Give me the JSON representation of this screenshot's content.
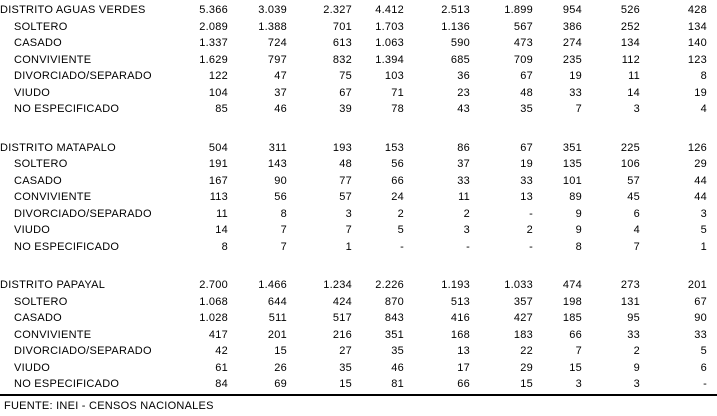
{
  "table": {
    "sections": [
      {
        "name": "DISTRITO AGUAS VERDES",
        "values": [
          "5.366",
          "3.039",
          "2.327",
          "4.412",
          "2.513",
          "1.899",
          "954",
          "526",
          "428"
        ],
        "rows": [
          {
            "label": "SOLTERO",
            "values": [
              "2.089",
              "1.388",
              "701",
              "1.703",
              "1.136",
              "567",
              "386",
              "252",
              "134"
            ]
          },
          {
            "label": "CASADO",
            "values": [
              "1.337",
              "724",
              "613",
              "1.063",
              "590",
              "473",
              "274",
              "134",
              "140"
            ]
          },
          {
            "label": "CONVIVIENTE",
            "values": [
              "1.629",
              "797",
              "832",
              "1.394",
              "685",
              "709",
              "235",
              "112",
              "123"
            ]
          },
          {
            "label": "DIVORCIADO/SEPARADO",
            "values": [
              "122",
              "47",
              "75",
              "103",
              "36",
              "67",
              "19",
              "11",
              "8"
            ]
          },
          {
            "label": "VIUDO",
            "values": [
              "104",
              "37",
              "67",
              "71",
              "23",
              "48",
              "33",
              "14",
              "19"
            ]
          },
          {
            "label": "NO ESPECIFICADO",
            "values": [
              "85",
              "46",
              "39",
              "78",
              "43",
              "35",
              "7",
              "3",
              "4"
            ]
          }
        ]
      },
      {
        "name": "DISTRITO MATAPALO",
        "values": [
          "504",
          "311",
          "193",
          "153",
          "86",
          "67",
          "351",
          "225",
          "126"
        ],
        "rows": [
          {
            "label": "SOLTERO",
            "values": [
              "191",
              "143",
              "48",
              "56",
              "37",
              "19",
              "135",
              "106",
              "29"
            ]
          },
          {
            "label": "CASADO",
            "values": [
              "167",
              "90",
              "77",
              "66",
              "33",
              "33",
              "101",
              "57",
              "44"
            ]
          },
          {
            "label": "CONVIVIENTE",
            "values": [
              "113",
              "56",
              "57",
              "24",
              "11",
              "13",
              "89",
              "45",
              "44"
            ]
          },
          {
            "label": "DIVORCIADO/SEPARADO",
            "values": [
              "11",
              "8",
              "3",
              "2",
              "2",
              "-",
              "9",
              "6",
              "3"
            ]
          },
          {
            "label": "VIUDO",
            "values": [
              "14",
              "7",
              "7",
              "5",
              "3",
              "2",
              "9",
              "4",
              "5"
            ]
          },
          {
            "label": "NO ESPECIFICADO",
            "values": [
              "8",
              "7",
              "1",
              "-",
              "-",
              "-",
              "8",
              "7",
              "1"
            ]
          }
        ]
      },
      {
        "name": "DISTRITO PAPAYAL",
        "values": [
          "2.700",
          "1.466",
          "1.234",
          "2.226",
          "1.193",
          "1.033",
          "474",
          "273",
          "201"
        ],
        "rows": [
          {
            "label": "SOLTERO",
            "values": [
              "1.068",
              "644",
              "424",
              "870",
              "513",
              "357",
              "198",
              "131",
              "67"
            ]
          },
          {
            "label": "CASADO",
            "values": [
              "1.028",
              "511",
              "517",
              "843",
              "416",
              "427",
              "185",
              "95",
              "90"
            ]
          },
          {
            "label": "CONVIVIENTE",
            "values": [
              "417",
              "201",
              "216",
              "351",
              "168",
              "183",
              "66",
              "33",
              "33"
            ]
          },
          {
            "label": "DIVORCIADO/SEPARADO",
            "values": [
              "42",
              "15",
              "27",
              "35",
              "13",
              "22",
              "7",
              "2",
              "5"
            ]
          },
          {
            "label": "VIUDO",
            "values": [
              "61",
              "26",
              "35",
              "46",
              "17",
              "29",
              "15",
              "9",
              "6"
            ]
          },
          {
            "label": "NO ESPECIFICADO",
            "values": [
              "84",
              "69",
              "15",
              "81",
              "66",
              "15",
              "3",
              "3",
              "-"
            ]
          }
        ]
      }
    ]
  },
  "footer": {
    "source": "FUENTE: INEI - CENSOS NACIONALES"
  },
  "colors": {
    "text": "#000000",
    "background": "#ffffff",
    "rule": "#000000"
  }
}
